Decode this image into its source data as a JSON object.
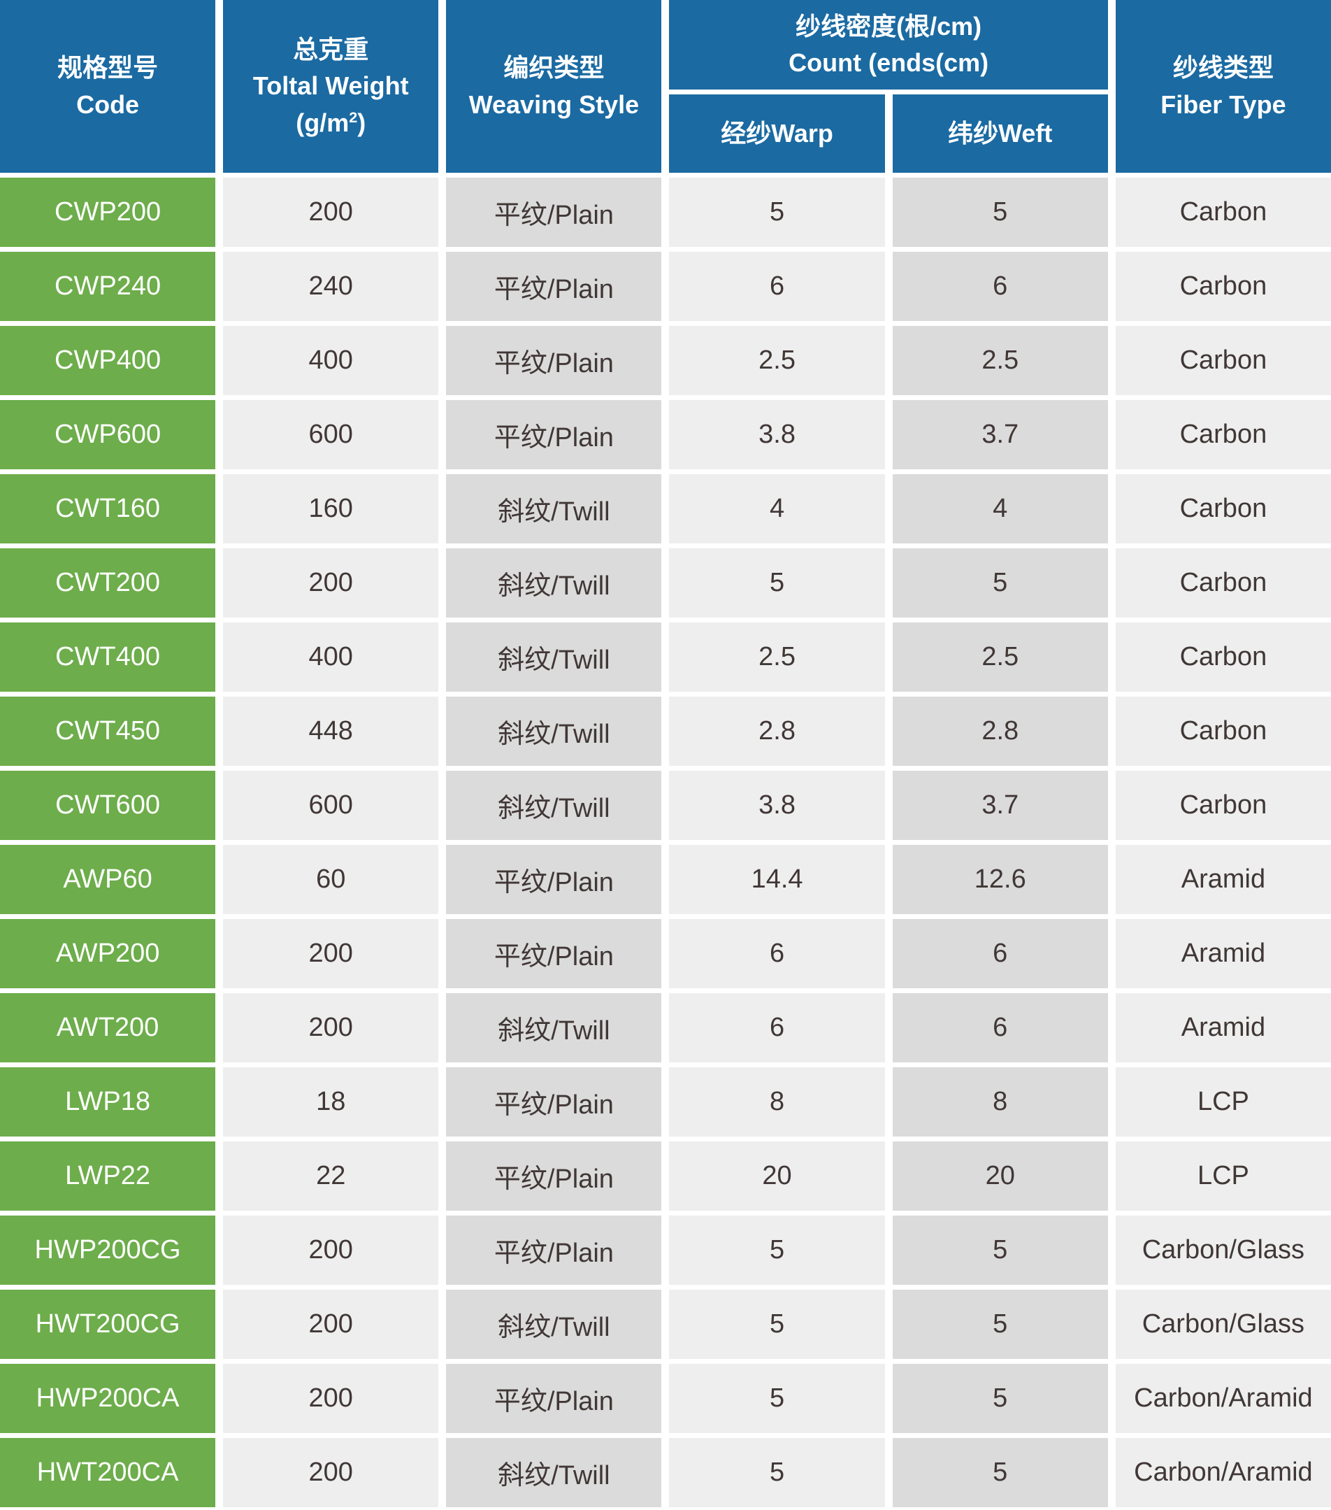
{
  "colors": {
    "header_blue": "#1b6aa2",
    "code_green": "#6dad4b",
    "cell_light": "#eeeeee",
    "cell_dark": "#dbdbdb",
    "data_text": "#403736",
    "header_text": "#ffffff"
  },
  "header": {
    "code_zh": "规格型号",
    "code_en": "Code",
    "weight_zh": "总克重",
    "weight_en": "Toltal Weight",
    "weight_unit_pre": "(g/m",
    "weight_unit_sup": "2",
    "weight_unit_post": ")",
    "weaving_zh": "编织类型",
    "weaving_en": "Weaving Style",
    "count_zh": "纱线密度(根/cm)",
    "count_en": "Count (ends(cm)",
    "warp": "经纱Warp",
    "weft": "纬纱Weft",
    "fiber_zh": "纱线类型",
    "fiber_en": "Fiber Type"
  },
  "rows": [
    {
      "code": "CWP200",
      "weight": "200",
      "weaving": "平纹/Plain",
      "warp": "5",
      "weft": "5",
      "fiber": "Carbon"
    },
    {
      "code": "CWP240",
      "weight": "240",
      "weaving": "平纹/Plain",
      "warp": "6",
      "weft": "6",
      "fiber": "Carbon"
    },
    {
      "code": "CWP400",
      "weight": "400",
      "weaving": "平纹/Plain",
      "warp": "2.5",
      "weft": "2.5",
      "fiber": "Carbon"
    },
    {
      "code": "CWP600",
      "weight": "600",
      "weaving": "平纹/Plain",
      "warp": "3.8",
      "weft": "3.7",
      "fiber": "Carbon"
    },
    {
      "code": "CWT160",
      "weight": "160",
      "weaving": "斜纹/Twill",
      "warp": "4",
      "weft": "4",
      "fiber": "Carbon"
    },
    {
      "code": "CWT200",
      "weight": "200",
      "weaving": "斜纹/Twill",
      "warp": "5",
      "weft": "5",
      "fiber": "Carbon"
    },
    {
      "code": "CWT400",
      "weight": "400",
      "weaving": "斜纹/Twill",
      "warp": "2.5",
      "weft": "2.5",
      "fiber": "Carbon"
    },
    {
      "code": "CWT450",
      "weight": "448",
      "weaving": "斜纹/Twill",
      "warp": "2.8",
      "weft": "2.8",
      "fiber": "Carbon"
    },
    {
      "code": "CWT600",
      "weight": "600",
      "weaving": "斜纹/Twill",
      "warp": "3.8",
      "weft": "3.7",
      "fiber": "Carbon"
    },
    {
      "code": "AWP60",
      "weight": "60",
      "weaving": "平纹/Plain",
      "warp": "14.4",
      "weft": "12.6",
      "fiber": "Aramid"
    },
    {
      "code": "AWP200",
      "weight": "200",
      "weaving": "平纹/Plain",
      "warp": "6",
      "weft": "6",
      "fiber": "Aramid"
    },
    {
      "code": "AWT200",
      "weight": "200",
      "weaving": "斜纹/Twill",
      "warp": "6",
      "weft": "6",
      "fiber": "Aramid"
    },
    {
      "code": "LWP18",
      "weight": "18",
      "weaving": "平纹/Plain",
      "warp": "8",
      "weft": "8",
      "fiber": "LCP"
    },
    {
      "code": "LWP22",
      "weight": "22",
      "weaving": "平纹/Plain",
      "warp": "20",
      "weft": "20",
      "fiber": "LCP"
    },
    {
      "code": "HWP200CG",
      "weight": "200",
      "weaving": "平纹/Plain",
      "warp": "5",
      "weft": "5",
      "fiber": "Carbon/Glass"
    },
    {
      "code": "HWT200CG",
      "weight": "200",
      "weaving": "斜纹/Twill",
      "warp": "5",
      "weft": "5",
      "fiber": "Carbon/Glass"
    },
    {
      "code": "HWP200CA",
      "weight": "200",
      "weaving": "平纹/Plain",
      "warp": "5",
      "weft": "5",
      "fiber": "Carbon/Aramid"
    },
    {
      "code": "HWT200CA",
      "weight": "200",
      "weaving": "斜纹/Twill",
      "warp": "5",
      "weft": "5",
      "fiber": "Carbon/Aramid"
    }
  ]
}
